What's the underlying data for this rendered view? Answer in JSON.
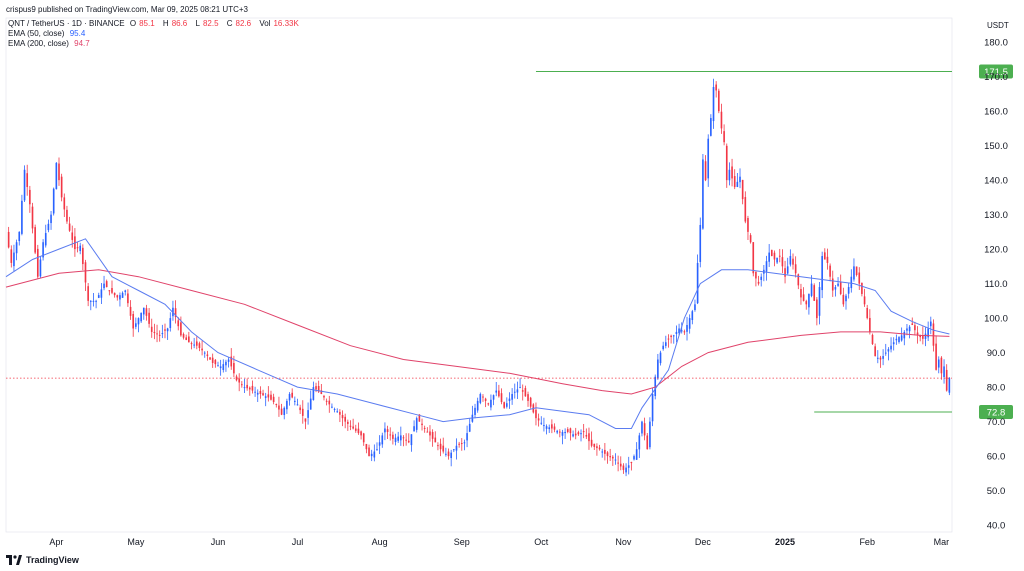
{
  "header": {
    "publisher_line": "crispus9 published on TradingView.com, Mar 09, 2025 08:21 UTC+3"
  },
  "legend": {
    "symbol": "QNT / TetherUS · 1D · BINANCE",
    "open_label": "O",
    "open": "85.1",
    "high_label": "H",
    "high": "86.6",
    "low_label": "L",
    "low": "82.5",
    "close_label": "C",
    "close": "82.6",
    "vol_label": "Vol",
    "vol": "16.33K",
    "ema50_label": "EMA (50, close)",
    "ema50": "95.4",
    "ema200_label": "EMA (200, close)",
    "ema200": "94.7"
  },
  "currency_label": "USDT",
  "footer": {
    "brand": "TradingView"
  },
  "colors": {
    "up": "#2962ff",
    "down": "#f23645",
    "ema50": "#5b7cf0",
    "ema200": "#e0436a",
    "level": "#4caf50",
    "current": "#f23645"
  },
  "chart_data": {
    "type": "candlestick",
    "ylim": [
      38,
      187
    ],
    "yticks": [
      "180.0",
      "170.0",
      "160.0",
      "150.0",
      "140.0",
      "130.0",
      "120.0",
      "110.0",
      "100.0",
      "90.0",
      "80.0",
      "70.0",
      "60.0",
      "50.0",
      "40.0"
    ],
    "ytick_values": [
      180,
      170,
      160,
      150,
      140,
      130,
      120,
      110,
      100,
      90,
      80,
      70,
      60,
      50,
      40
    ],
    "xticks": [
      "Apr",
      "May",
      "Jun",
      "Jul",
      "Aug",
      "Sep",
      "Oct",
      "Nov",
      "Dec",
      "2025",
      "Feb",
      "Mar"
    ],
    "xtick_days": [
      19,
      49,
      80,
      110,
      141,
      172,
      202,
      233,
      263,
      294,
      325,
      353
    ],
    "total_days": 357,
    "levels": [
      {
        "label": "171.5",
        "value": 171.5,
        "start_day": 200
      },
      {
        "label": "72.8",
        "value": 72.8,
        "start_day": 305
      }
    ],
    "current_price": 82.6,
    "ema50": [
      [
        0,
        112
      ],
      [
        10,
        117
      ],
      [
        20,
        120
      ],
      [
        30,
        123
      ],
      [
        40,
        112
      ],
      [
        50,
        108
      ],
      [
        60,
        104
      ],
      [
        70,
        96
      ],
      [
        80,
        90
      ],
      [
        95,
        85
      ],
      [
        110,
        80
      ],
      [
        125,
        78
      ],
      [
        140,
        75
      ],
      [
        155,
        72
      ],
      [
        165,
        70
      ],
      [
        175,
        71
      ],
      [
        190,
        72
      ],
      [
        200,
        74
      ],
      [
        210,
        73
      ],
      [
        220,
        72
      ],
      [
        230,
        68
      ],
      [
        236,
        68
      ],
      [
        240,
        74
      ],
      [
        250,
        85
      ],
      [
        256,
        100
      ],
      [
        262,
        110
      ],
      [
        270,
        114
      ],
      [
        280,
        114
      ],
      [
        290,
        113
      ],
      [
        300,
        112
      ],
      [
        310,
        111
      ],
      [
        320,
        110
      ],
      [
        328,
        108
      ],
      [
        334,
        102
      ],
      [
        342,
        99
      ],
      [
        350,
        96.5
      ],
      [
        356,
        95.4
      ]
    ],
    "ema200": [
      [
        0,
        109
      ],
      [
        20,
        113
      ],
      [
        35,
        114
      ],
      [
        50,
        112
      ],
      [
        70,
        108
      ],
      [
        90,
        104
      ],
      [
        110,
        98
      ],
      [
        130,
        92
      ],
      [
        150,
        88
      ],
      [
        170,
        86
      ],
      [
        190,
        84
      ],
      [
        210,
        81
      ],
      [
        225,
        79
      ],
      [
        236,
        78
      ],
      [
        245,
        80
      ],
      [
        255,
        86
      ],
      [
        265,
        90
      ],
      [
        280,
        93
      ],
      [
        300,
        95
      ],
      [
        315,
        96
      ],
      [
        330,
        96
      ],
      [
        345,
        95
      ],
      [
        356,
        94.7
      ]
    ],
    "keypoints": [
      [
        0,
        125
      ],
      [
        2,
        116
      ],
      [
        5,
        125
      ],
      [
        7,
        143
      ],
      [
        9,
        133
      ],
      [
        12,
        112
      ],
      [
        14,
        122
      ],
      [
        17,
        130
      ],
      [
        19,
        145
      ],
      [
        21,
        135
      ],
      [
        23,
        128
      ],
      [
        26,
        120
      ],
      [
        28,
        121
      ],
      [
        31,
        105
      ],
      [
        34,
        105
      ],
      [
        37,
        110
      ],
      [
        39,
        108
      ],
      [
        42,
        106
      ],
      [
        45,
        108
      ],
      [
        48,
        97
      ],
      [
        52,
        103
      ],
      [
        55,
        96
      ],
      [
        58,
        95
      ],
      [
        61,
        97
      ],
      [
        63,
        103
      ],
      [
        66,
        95
      ],
      [
        69,
        93
      ],
      [
        72,
        92
      ],
      [
        75,
        90
      ],
      [
        78,
        87
      ],
      [
        81,
        86
      ],
      [
        84,
        88
      ],
      [
        87,
        82
      ],
      [
        90,
        80
      ],
      [
        93,
        79
      ],
      [
        96,
        78
      ],
      [
        99,
        77
      ],
      [
        102,
        75
      ],
      [
        104,
        72
      ],
      [
        107,
        78
      ],
      [
        110,
        75
      ],
      [
        113,
        70
      ],
      [
        116,
        80
      ],
      [
        119,
        78
      ],
      [
        122,
        75
      ],
      [
        125,
        73
      ],
      [
        128,
        70
      ],
      [
        131,
        68
      ],
      [
        134,
        66
      ],
      [
        137,
        60
      ],
      [
        140,
        62
      ],
      [
        143,
        68
      ],
      [
        146,
        65
      ],
      [
        149,
        66
      ],
      [
        152,
        64
      ],
      [
        155,
        71
      ],
      [
        158,
        68
      ],
      [
        161,
        65
      ],
      [
        164,
        62
      ],
      [
        167,
        60
      ],
      [
        170,
        63
      ],
      [
        173,
        64
      ],
      [
        176,
        72
      ],
      [
        179,
        78
      ],
      [
        182,
        75
      ],
      [
        185,
        79
      ],
      [
        188,
        74
      ],
      [
        191,
        78
      ],
      [
        194,
        80
      ],
      [
        197,
        76
      ],
      [
        200,
        71
      ],
      [
        203,
        69
      ],
      [
        206,
        68
      ],
      [
        209,
        67
      ],
      [
        212,
        67
      ],
      [
        215,
        66
      ],
      [
        218,
        67
      ],
      [
        221,
        63
      ],
      [
        224,
        62
      ],
      [
        227,
        60
      ],
      [
        230,
        59
      ],
      [
        233,
        56
      ],
      [
        236,
        58
      ],
      [
        238,
        62
      ],
      [
        240,
        70
      ],
      [
        242,
        62
      ],
      [
        244,
        78
      ],
      [
        246,
        88
      ],
      [
        248,
        92
      ],
      [
        250,
        94
      ],
      [
        252,
        95
      ],
      [
        254,
        97
      ],
      [
        256,
        96
      ],
      [
        258,
        100
      ],
      [
        260,
        104
      ],
      [
        261,
        116
      ],
      [
        262,
        127
      ],
      [
        263,
        146
      ],
      [
        264,
        140
      ],
      [
        265,
        152
      ],
      [
        266,
        158
      ],
      [
        267,
        167
      ],
      [
        268,
        166
      ],
      [
        269,
        160
      ],
      [
        270,
        155
      ],
      [
        271,
        151
      ],
      [
        272,
        140
      ],
      [
        273,
        143
      ],
      [
        275,
        138
      ],
      [
        277,
        141
      ],
      [
        279,
        128
      ],
      [
        281,
        122
      ],
      [
        282,
        113
      ],
      [
        284,
        110
      ],
      [
        286,
        114
      ],
      [
        288,
        119
      ],
      [
        290,
        117
      ],
      [
        292,
        118
      ],
      [
        294,
        112
      ],
      [
        296,
        118
      ],
      [
        298,
        113
      ],
      [
        300,
        106
      ],
      [
        302,
        104
      ],
      [
        304,
        110
      ],
      [
        306,
        100
      ],
      [
        308,
        118
      ],
      [
        310,
        116
      ],
      [
        312,
        108
      ],
      [
        314,
        110
      ],
      [
        316,
        104
      ],
      [
        318,
        109
      ],
      [
        320,
        115
      ],
      [
        322,
        110
      ],
      [
        324,
        104
      ],
      [
        326,
        96
      ],
      [
        328,
        89
      ],
      [
        330,
        88
      ],
      [
        332,
        90
      ],
      [
        334,
        92
      ],
      [
        336,
        94
      ],
      [
        338,
        95
      ],
      [
        340,
        97
      ],
      [
        342,
        98
      ],
      [
        344,
        95
      ],
      [
        346,
        94
      ],
      [
        348,
        97
      ],
      [
        349,
        99
      ],
      [
        350,
        92
      ],
      [
        351,
        85
      ],
      [
        352,
        88
      ],
      [
        353,
        84
      ],
      [
        354,
        86
      ],
      [
        355,
        79
      ],
      [
        356,
        82.6
      ]
    ]
  }
}
